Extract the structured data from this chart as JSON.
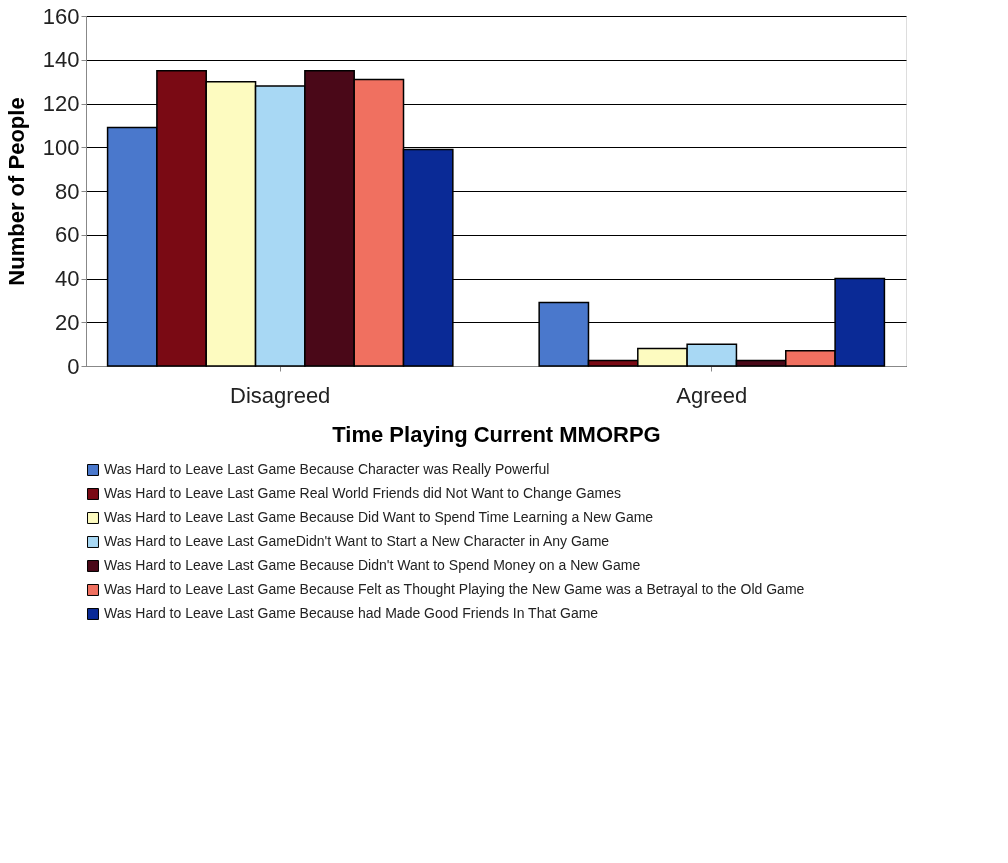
{
  "chart_data": {
    "type": "bar",
    "xlabel": "Time Playing Current MMORPG",
    "ylabel": "Number of People",
    "categories": [
      "Disagreed",
      "Agreed"
    ],
    "series": [
      {
        "name": "Was Hard to Leave Last Game Because Character was Really Powerful",
        "color": "#4a78cc",
        "values": [
          109,
          29
        ]
      },
      {
        "name": "Was Hard to Leave Last Game Real World Friends did Not Want to Change Games",
        "color": "#7a0a14",
        "values": [
          135,
          2.5
        ]
      },
      {
        "name": "Was Hard to Leave Last Game Because Did Want to Spend Time Learning a New Game",
        "color": "#fdfbc0",
        "values": [
          130,
          8
        ]
      },
      {
        "name": "Was Hard to Leave Last GameDidn't Want to Start a New Character in Any Game",
        "color": "#a8d8f4",
        "values": [
          128,
          10
        ]
      },
      {
        "name": "Was Hard to Leave Last Game Because Didn't Want to Spend Money on a New Game",
        "color": "#4a0818",
        "values": [
          135,
          2.5
        ]
      },
      {
        "name": "Was Hard to Leave Last Game Because Felt as Thought Playing the New Game was a Betrayal to the Old Game",
        "color": "#f07060",
        "values": [
          131,
          7
        ]
      },
      {
        "name": "Was Hard to Leave Last Game Because had Made Good Friends In That Game",
        "color": "#0a2a96",
        "values": [
          99,
          40
        ]
      }
    ],
    "ylim": [
      0,
      160
    ],
    "yticks": [
      0,
      20,
      40,
      60,
      80,
      100,
      120,
      140,
      160
    ],
    "grid": "y",
    "legend": "bottom"
  }
}
